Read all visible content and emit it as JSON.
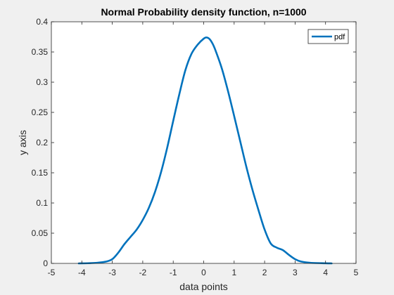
{
  "chart_data": {
    "type": "line",
    "title": "Normal Probability density function, n=1000",
    "xlabel": "data points",
    "ylabel": "y axis",
    "xlim": [
      -5,
      5
    ],
    "ylim": [
      0,
      0.4
    ],
    "x_ticks": [
      "-5",
      "-4",
      "-3",
      "-2",
      "-1",
      "0",
      "1",
      "2",
      "3",
      "4",
      "5"
    ],
    "y_ticks": [
      "0",
      "0.05",
      "0.1",
      "0.15",
      "0.2",
      "0.25",
      "0.3",
      "0.35",
      "0.4"
    ],
    "grid": false,
    "legend": {
      "position": "top-right",
      "entries": [
        "pdf"
      ]
    },
    "series": [
      {
        "name": "pdf",
        "color": "#0072bd",
        "points": [
          [
            -4.1,
            0.0
          ],
          [
            -3.8,
            0.0003
          ],
          [
            -3.5,
            0.001
          ],
          [
            -3.2,
            0.003
          ],
          [
            -3.0,
            0.007
          ],
          [
            -2.8,
            0.018
          ],
          [
            -2.6,
            0.032
          ],
          [
            -2.4,
            0.044
          ],
          [
            -2.2,
            0.056
          ],
          [
            -2.0,
            0.072
          ],
          [
            -1.8,
            0.092
          ],
          [
            -1.6,
            0.118
          ],
          [
            -1.4,
            0.151
          ],
          [
            -1.2,
            0.191
          ],
          [
            -1.0,
            0.236
          ],
          [
            -0.8,
            0.28
          ],
          [
            -0.6,
            0.32
          ],
          [
            -0.4,
            0.347
          ],
          [
            -0.2,
            0.362
          ],
          [
            0.0,
            0.372
          ],
          [
            0.1,
            0.374
          ],
          [
            0.2,
            0.371
          ],
          [
            0.3,
            0.363
          ],
          [
            0.4,
            0.351
          ],
          [
            0.6,
            0.322
          ],
          [
            0.8,
            0.285
          ],
          [
            1.0,
            0.244
          ],
          [
            1.2,
            0.202
          ],
          [
            1.4,
            0.16
          ],
          [
            1.6,
            0.122
          ],
          [
            1.8,
            0.088
          ],
          [
            2.0,
            0.056
          ],
          [
            2.2,
            0.033
          ],
          [
            2.4,
            0.026
          ],
          [
            2.6,
            0.022
          ],
          [
            2.8,
            0.014
          ],
          [
            3.0,
            0.007
          ],
          [
            3.2,
            0.003
          ],
          [
            3.5,
            0.001
          ],
          [
            4.0,
            0.0002
          ],
          [
            4.2,
            0.0
          ]
        ]
      }
    ]
  }
}
